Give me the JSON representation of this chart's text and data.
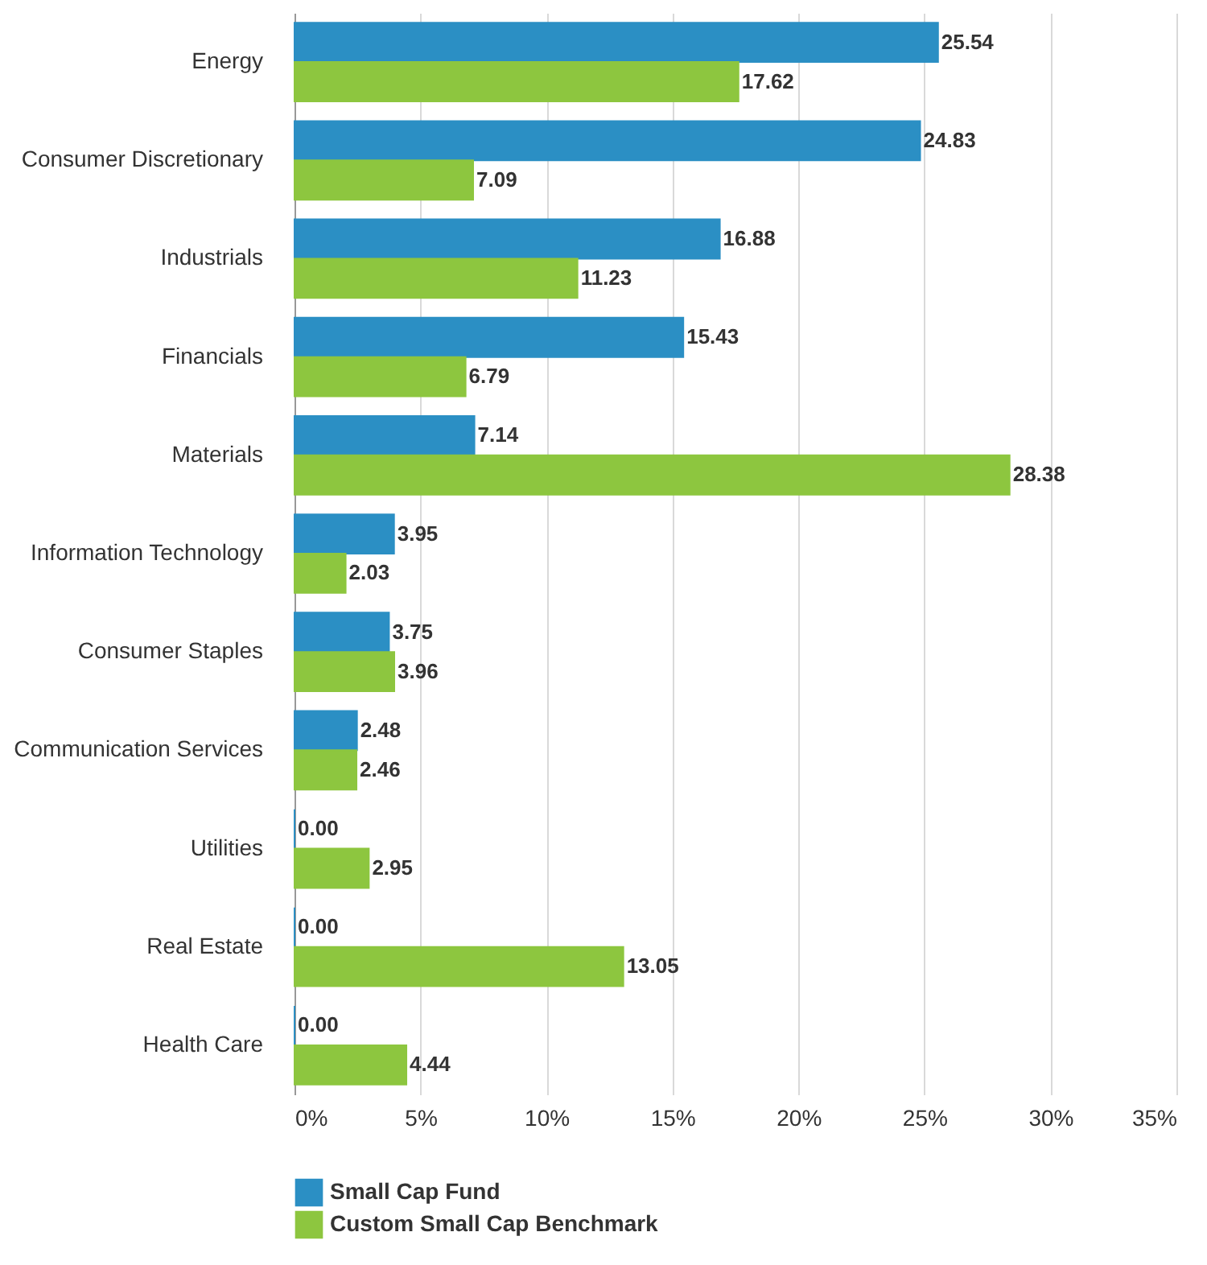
{
  "chart_data": {
    "type": "bar",
    "orientation": "horizontal",
    "categories": [
      "Energy",
      "Consumer Discretionary",
      "Industrials",
      "Financials",
      "Materials",
      "Information Technology",
      "Consumer Staples",
      "Communication Services",
      "Utilities",
      "Real Estate",
      "Health Care"
    ],
    "series": [
      {
        "name": "Small Cap Fund",
        "color": "#2b8fc4",
        "values": [
          25.54,
          24.83,
          16.88,
          15.43,
          7.14,
          3.95,
          3.75,
          2.48,
          0.0,
          0.0,
          0.0
        ],
        "value_labels": [
          "25.54",
          "24.83",
          "16.88",
          "15.43",
          "7.14",
          "3.95",
          "3.75",
          "2.48",
          "0.00",
          "0.00",
          "0.00"
        ]
      },
      {
        "name": "Custom Small Cap Benchmark",
        "color": "#8dc63f",
        "values": [
          17.62,
          7.09,
          11.23,
          6.79,
          28.38,
          2.03,
          3.96,
          2.46,
          2.95,
          13.05,
          4.44
        ],
        "value_labels": [
          "17.62",
          "7.09",
          "11.23",
          "6.79",
          "28.38",
          "2.03",
          "3.96",
          "2.46",
          "2.95",
          "13.05",
          "4.44"
        ]
      }
    ],
    "xlim": [
      0,
      35
    ],
    "xticks": [
      {
        "value": 0,
        "label": "0%"
      },
      {
        "value": 5,
        "label": "5%"
      },
      {
        "value": 10,
        "label": "10%"
      },
      {
        "value": 15,
        "label": "15%"
      },
      {
        "value": 20,
        "label": "20%"
      },
      {
        "value": 25,
        "label": "25%"
      },
      {
        "value": 30,
        "label": "30%"
      },
      {
        "value": 35,
        "label": "35%"
      }
    ],
    "grid": "x",
    "legend": "bottom left"
  }
}
